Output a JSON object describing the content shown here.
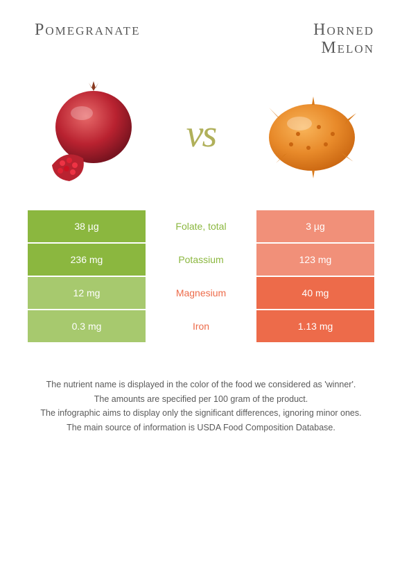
{
  "colors": {
    "left": "#8bb73f",
    "right": "#ed6b4a",
    "left_dim": "#a7c96e",
    "right_dim": "#f19079",
    "neutral": "#b0b05a",
    "text": "#5a5a5a"
  },
  "header": {
    "left_title": "Pomegranate",
    "right_title": "Horned Melon",
    "vs_label": "vs"
  },
  "comparison": {
    "rows": [
      {
        "nutrient": "Folate, total",
        "left": "38 µg",
        "right": "3 µg",
        "winner": "left"
      },
      {
        "nutrient": "Potassium",
        "left": "236 mg",
        "right": "123 mg",
        "winner": "left"
      },
      {
        "nutrient": "Magnesium",
        "left": "12 mg",
        "right": "40 mg",
        "winner": "right"
      },
      {
        "nutrient": "Iron",
        "left": "0.3 mg",
        "right": "1.13 mg",
        "winner": "right"
      }
    ]
  },
  "footnotes": [
    "The nutrient name is displayed in the color of the food we considered as 'winner'.",
    "The amounts are specified per 100 gram of the product.",
    "The infographic aims to display only the significant differences, ignoring minor ones.",
    "The main source of information is USDA Food Composition Database."
  ]
}
